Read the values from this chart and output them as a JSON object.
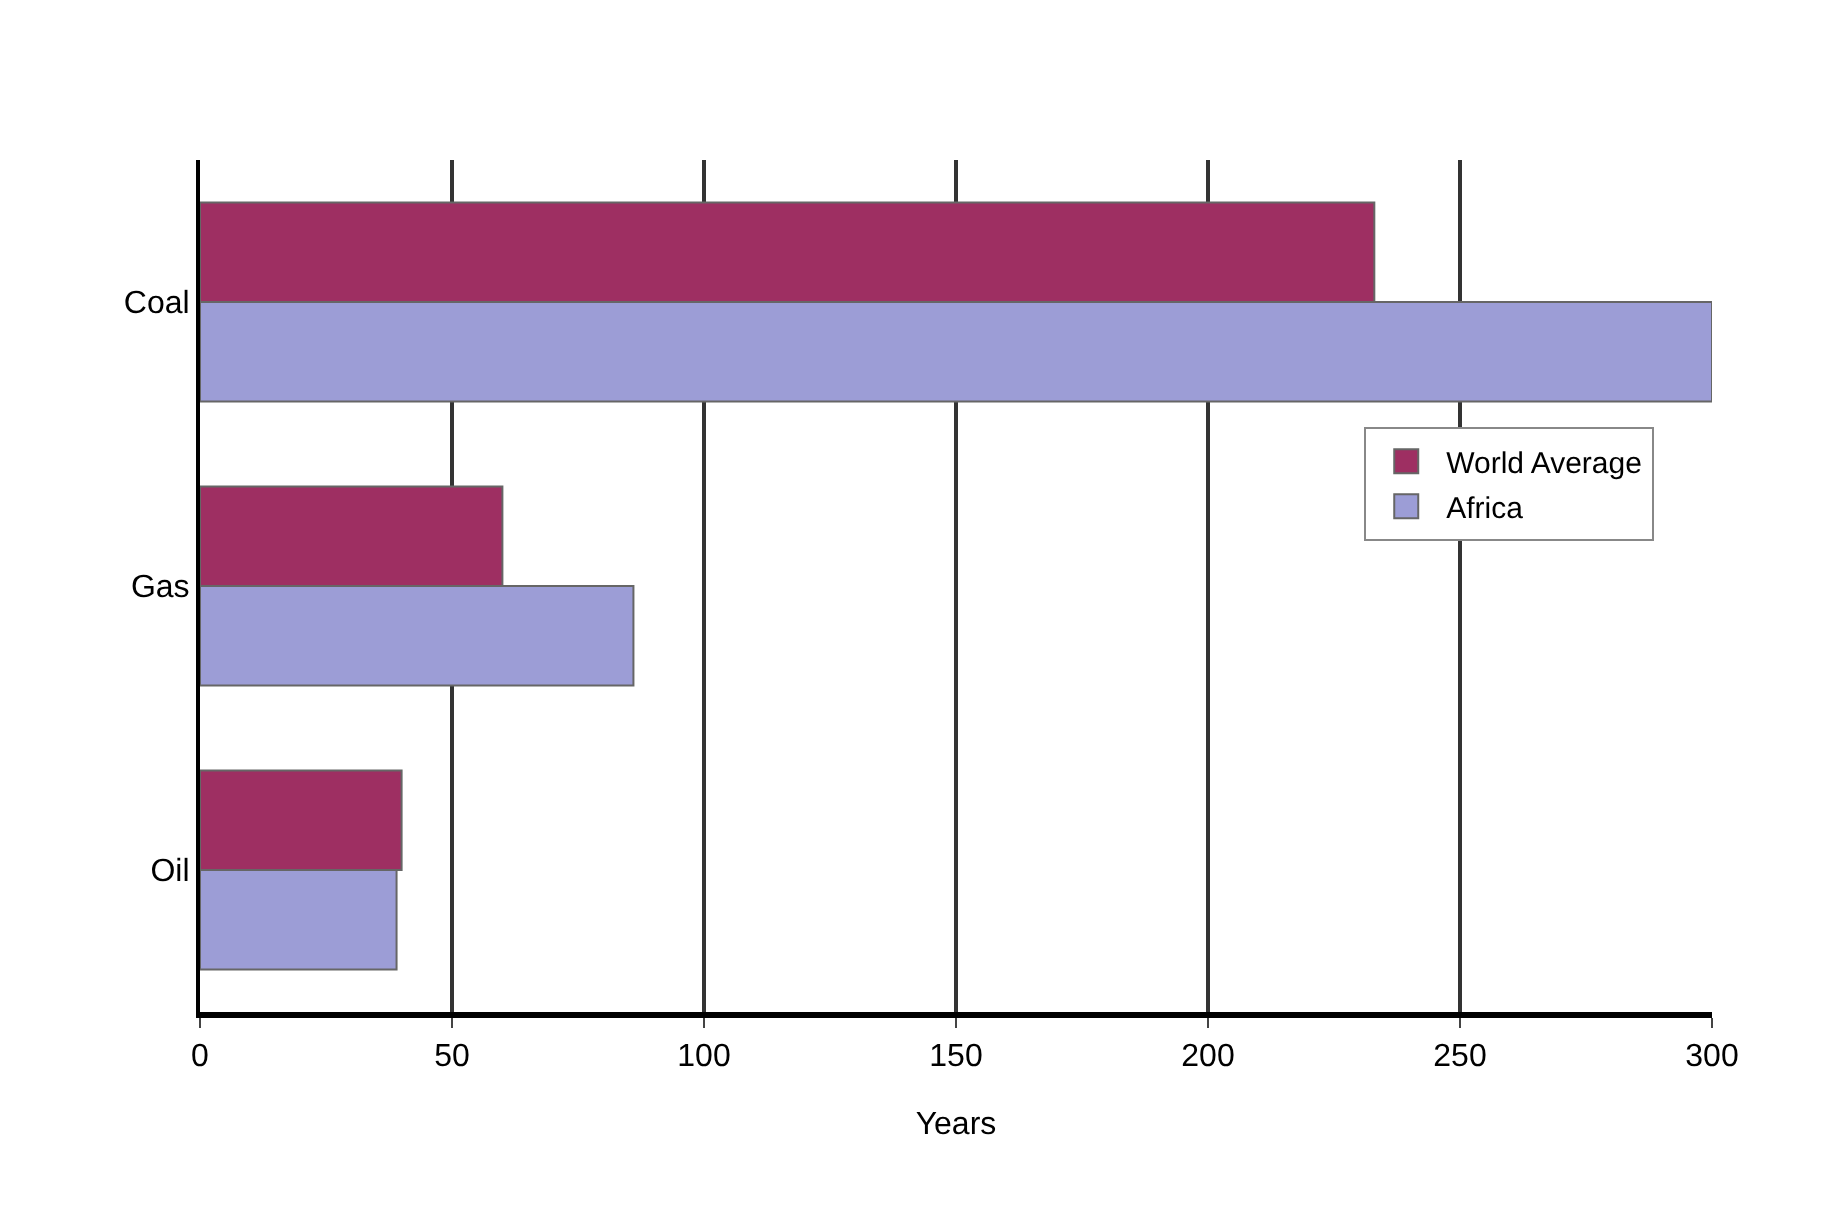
{
  "chart_data": {
    "type": "bar",
    "orientation": "horizontal",
    "xlabel": "Years",
    "categories": [
      "Coal",
      "Gas",
      "Oil"
    ],
    "series": [
      {
        "name": "World Average",
        "color": "#9e2f62",
        "values": [
          233,
          60,
          40
        ]
      },
      {
        "name": "Africa",
        "color": "#9c9dd6",
        "values": [
          300,
          86,
          39
        ]
      }
    ],
    "xlim": [
      0,
      300
    ],
    "xticks": [
      0,
      50,
      100,
      150,
      200,
      250,
      300
    ],
    "grid": "x",
    "legend": "right"
  }
}
